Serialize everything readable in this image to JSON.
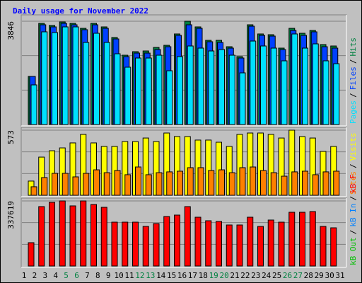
{
  "chart_data": [
    {
      "type": "bar",
      "title": "Daily usage for November 2022",
      "ylim": [
        0,
        3846
      ],
      "yticks": [
        3846
      ],
      "legend_separator": "/",
      "series": [
        {
          "name": "Hits",
          "color": "#008040",
          "values": [
            1791,
            3767,
            3688,
            3819,
            3767,
            3582,
            3767,
            3635,
            3240,
            2581,
            2713,
            2739,
            2871,
            2950,
            3372,
            3846,
            3635,
            3135,
            3135,
            2897,
            2529,
            3714,
            3372,
            3345,
            2845,
            3582,
            3398,
            3503,
            2977,
            2924,
            null
          ]
        },
        {
          "name": "Files",
          "color": "#0040ff",
          "values": [
            1791,
            3714,
            3635,
            3767,
            3714,
            3530,
            3714,
            3582,
            3187,
            2529,
            2660,
            2660,
            2792,
            2897,
            3319,
            3714,
            3582,
            3082,
            3056,
            2845,
            2476,
            3661,
            3319,
            3293,
            2792,
            3503,
            3319,
            3451,
            2897,
            2845,
            null
          ]
        },
        {
          "name": "Pages",
          "color": "#00e0ff",
          "values": [
            1475,
            3451,
            3424,
            3635,
            3635,
            3056,
            3398,
            3056,
            2634,
            2134,
            2476,
            2476,
            2581,
            2002,
            2529,
            2924,
            2845,
            2739,
            2792,
            2581,
            1923,
            3108,
            2924,
            2845,
            2371,
            3372,
            2845,
            3003,
            2371,
            2265,
            null
          ]
        }
      ]
    },
    {
      "type": "bar",
      "ylim": [
        0,
        573
      ],
      "yticks": [
        573
      ],
      "legend_separator": "/",
      "series": [
        {
          "name": "Visits",
          "color": "#ffff00",
          "values": [
            125,
            336,
            392,
            417,
            461,
            536,
            461,
            430,
            430,
            473,
            473,
            504,
            473,
            548,
            517,
            517,
            486,
            486,
            467,
            430,
            536,
            548,
            548,
            536,
            504,
            573,
            517,
            504,
            386,
            430,
            null
          ]
        },
        {
          "name": "Sites",
          "color": "#ff8000",
          "values": [
            75,
            156,
            193,
            193,
            162,
            193,
            224,
            199,
            218,
            181,
            249,
            181,
            199,
            206,
            212,
            243,
            243,
            218,
            224,
            199,
            243,
            249,
            218,
            199,
            168,
            206,
            212,
            181,
            206,
            212,
            null
          ]
        }
      ]
    },
    {
      "type": "bar",
      "ylim": [
        0,
        337619
      ],
      "yticks": [
        337619
      ],
      "legend_separator": "/",
      "categories": [
        "1",
        "2",
        "3",
        "4",
        "5",
        "6",
        "7",
        "8",
        "9",
        "10",
        "11",
        "12",
        "13",
        "14",
        "15",
        "16",
        "17",
        "18",
        "19",
        "20",
        "21",
        "22",
        "23",
        "24",
        "25",
        "26",
        "27",
        "28",
        "29",
        "30",
        "31"
      ],
      "category_colors": [
        "#000",
        "#000",
        "#000",
        "#000",
        "#008040",
        "#008040",
        "#000",
        "#000",
        "#000",
        "#000",
        "#000",
        "#008040",
        "#008040",
        "#000",
        "#000",
        "#000",
        "#000",
        "#000",
        "#008040",
        "#008040",
        "#000",
        "#000",
        "#000",
        "#000",
        "#000",
        "#008040",
        "#008040",
        "#000",
        "#000",
        "#000",
        "#000"
      ],
      "series": [
        {
          "name": "kB F",
          "color": "#ff0000",
          "values": [
            121103,
            308263,
            330282,
            337619,
            311933,
            337619,
            319273,
            304593,
            227528,
            227528,
            227528,
            205509,
            220188,
            256886,
            264226,
            308263,
            253216,
            234867,
            231197,
            212848,
            212848,
            253216,
            205509,
            238537,
            227528,
            278905,
            278905,
            282575,
            205509,
            198169,
            null
          ]
        },
        {
          "name": "kB In",
          "color": "#0080ff",
          "values": [
            null,
            null,
            null,
            null,
            null,
            null,
            null,
            null,
            null,
            null,
            null,
            null,
            null,
            null,
            null,
            null,
            null,
            null,
            null,
            null,
            null,
            null,
            null,
            null,
            null,
            null,
            null,
            null,
            null,
            null,
            null
          ]
        },
        {
          "name": "kB Out",
          "color": "#00c000",
          "values": [
            null,
            null,
            null,
            null,
            null,
            null,
            null,
            null,
            null,
            null,
            null,
            null,
            null,
            null,
            null,
            null,
            null,
            null,
            null,
            null,
            null,
            null,
            null,
            null,
            null,
            null,
            null,
            null,
            null,
            null,
            null
          ]
        }
      ]
    }
  ]
}
